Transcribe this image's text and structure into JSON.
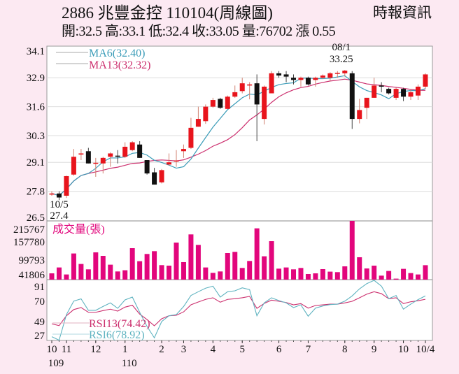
{
  "header": {
    "title": "2886  兆豐金控 110104(周線圖)",
    "ohlc_line": "開:32.5 高:33.1 低:32.4 收:33.05 量:76702 漲 0.55",
    "source": "時報資訊"
  },
  "colors": {
    "up": "#e8141c",
    "down": "#111111",
    "ma6": "#3b9cb8",
    "ma13": "#cc2f6e",
    "volume": "#e2067c",
    "rsi13": "#cc2f6e",
    "rsi6": "#5fb3c0",
    "background": "#fce9f2",
    "plot": "#ffffff"
  },
  "chart_data": [
    {
      "type": "candlestick",
      "panel": "price",
      "ylim": [
        26.5,
        34.1
      ],
      "yticks": [
        "34.1",
        "32.9",
        "31.6",
        "30.3",
        "29.1",
        "27.8",
        "26.5"
      ],
      "grid": true,
      "legend": [
        {
          "label": "MA6(32.40)",
          "series": "ma6"
        },
        {
          "label": "MA13(32.32)",
          "series": "ma13"
        }
      ],
      "ohlc": [
        [
          27.65,
          27.8,
          27.6,
          27.7
        ],
        [
          27.7,
          27.8,
          27.4,
          27.52
        ],
        [
          27.6,
          28.5,
          27.5,
          28.48
        ],
        [
          28.55,
          29.7,
          28.5,
          29.35
        ],
        [
          29.45,
          29.7,
          29.2,
          29.5
        ],
        [
          29.6,
          29.75,
          29.05,
          29.05
        ],
        [
          29.05,
          29.3,
          28.45,
          29.08
        ],
        [
          29.05,
          29.35,
          28.6,
          29.3
        ],
        [
          29.35,
          29.55,
          28.9,
          29.5
        ],
        [
          29.4,
          29.65,
          29.05,
          29.35
        ],
        [
          29.35,
          30.0,
          29.3,
          29.8
        ],
        [
          29.65,
          30.05,
          29.6,
          30.0
        ],
        [
          29.9,
          30.05,
          29.3,
          29.3
        ],
        [
          29.2,
          29.2,
          28.55,
          28.6
        ],
        [
          28.65,
          28.85,
          28.1,
          28.1
        ],
        [
          28.2,
          28.8,
          28.15,
          28.75
        ],
        [
          29.0,
          29.5,
          28.95,
          29.1
        ],
        [
          29.15,
          29.65,
          28.9,
          29.18
        ],
        [
          29.6,
          29.9,
          29.3,
          29.7
        ],
        [
          29.75,
          31.1,
          29.7,
          30.65
        ],
        [
          30.7,
          31.6,
          30.7,
          31.05
        ],
        [
          30.95,
          31.7,
          30.83,
          31.6
        ],
        [
          31.6,
          32.0,
          31.55,
          31.9
        ],
        [
          31.95,
          32.0,
          31.5,
          31.55
        ],
        [
          31.5,
          32.1,
          31.5,
          32.05
        ],
        [
          32.05,
          32.55,
          32.0,
          32.25
        ],
        [
          32.3,
          32.9,
          32.2,
          32.65
        ],
        [
          32.55,
          32.7,
          31.93,
          32.6
        ],
        [
          32.65,
          33.05,
          30.05,
          31.7
        ],
        [
          31.05,
          32.55,
          30.8,
          32.5
        ],
        [
          32.2,
          33.2,
          32.2,
          33.1
        ],
        [
          33.1,
          33.2,
          32.9,
          33.0
        ],
        [
          33.05,
          33.2,
          32.7,
          32.95
        ],
        [
          32.9,
          33.05,
          32.6,
          32.8
        ],
        [
          32.8,
          32.95,
          32.5,
          32.9
        ],
        [
          32.9,
          32.95,
          32.55,
          32.6
        ],
        [
          32.8,
          32.95,
          32.5,
          32.9
        ],
        [
          32.9,
          33.05,
          32.85,
          33.0
        ],
        [
          32.9,
          33.15,
          32.75,
          33.1
        ],
        [
          33.1,
          33.2,
          32.9,
          33.12
        ],
        [
          33.1,
          33.25,
          32.95,
          33.22
        ],
        [
          33.1,
          33.2,
          30.6,
          31.05
        ],
        [
          31.05,
          31.95,
          30.85,
          31.45
        ],
        [
          31.55,
          32.0,
          31.05,
          32.0
        ],
        [
          32.0,
          32.9,
          32.0,
          32.55
        ],
        [
          32.55,
          32.7,
          32.25,
          32.5
        ],
        [
          32.4,
          32.45,
          32.15,
          32.2
        ],
        [
          32.0,
          32.45,
          31.9,
          32.4
        ],
        [
          32.4,
          32.45,
          31.85,
          32.05
        ],
        [
          32.05,
          32.4,
          31.9,
          32.25
        ],
        [
          32.1,
          32.6,
          31.9,
          32.5
        ],
        [
          32.5,
          33.1,
          32.4,
          33.05
        ]
      ],
      "annotations": [
        {
          "week": 1,
          "date": "10/5",
          "value": "27.4",
          "position": "below"
        },
        {
          "week": 40,
          "date": "08/1",
          "value": "33.25",
          "position": "above"
        }
      ]
    },
    {
      "type": "bar",
      "panel": "volume",
      "title": "成交量(張)",
      "ylim": [
        23900,
        238800
      ],
      "yticks": [
        "215767",
        "157780",
        "99793",
        "41806"
      ],
      "values": [
        46900,
        68400,
        42800,
        119600,
        81200,
        61500,
        123700,
        110900,
        78600,
        53800,
        58200,
        139000,
        91400,
        117800,
        128000,
        76900,
        75100,
        159500,
        87900,
        189400,
        151000,
        68400,
        48700,
        53800,
        121100,
        125500,
        66600,
        92200,
        211600,
        109300,
        164600,
        64100,
        68400,
        61500,
        66600,
        44400,
        46900,
        62300,
        53100,
        51300,
        72500,
        238800,
        105800,
        64800,
        75100,
        38500,
        55600,
        27500,
        63300,
        47900,
        42800,
        76702
      ]
    },
    {
      "type": "line",
      "panel": "rsi",
      "yticks": [
        "91",
        "70",
        "49",
        "27"
      ],
      "ylim": [
        19,
        100
      ],
      "series": [
        {
          "name": "RSI13(74.42)",
          "key": "rsi13",
          "values": [
            42.3,
            40,
            52.9,
            61,
            63.6,
            57.4,
            57.4,
            59.6,
            61.5,
            59,
            64.2,
            66.6,
            55,
            48,
            39.8,
            49,
            52.9,
            53.5,
            58,
            67.2,
            70.9,
            74.3,
            76.4,
            70.6,
            74.3,
            75.2,
            76.4,
            78.2,
            62.6,
            69,
            73.3,
            71.8,
            70.2,
            67.2,
            68.8,
            62.9,
            66.3,
            67.2,
            68.1,
            68.1,
            69.7,
            71.8,
            76.4,
            81.2,
            84.3,
            81.8,
            75.2,
            76.4,
            68.8,
            71.2,
            72.5,
            74.42
          ]
        },
        {
          "name": "RSI6(78.92)",
          "key": "rsi6",
          "values": [
            25.5,
            21,
            54.4,
            72,
            75,
            60,
            60,
            65,
            69.7,
            62.6,
            73.6,
            77.3,
            57.4,
            39,
            24,
            45.3,
            52.9,
            54.4,
            65,
            79.4,
            84.3,
            88.9,
            91.6,
            77.3,
            84.3,
            85.5,
            89.4,
            87,
            52.9,
            69.7,
            76.4,
            72.7,
            69.7,
            63.6,
            67.2,
            52.3,
            62.9,
            65.7,
            67.5,
            68.1,
            72,
            78.8,
            88,
            94.9,
            99.2,
            91.6,
            75.2,
            79.4,
            61.5,
            68.1,
            74,
            78.92
          ]
        }
      ]
    }
  ],
  "xaxis": {
    "ticks": [
      {
        "week": 0,
        "label": "10"
      },
      {
        "week": 2,
        "label": "11"
      },
      {
        "week": 6,
        "label": "12"
      },
      {
        "week": 10,
        "label": "1"
      },
      {
        "week": 15,
        "label": "2"
      },
      {
        "week": 18,
        "label": "3"
      },
      {
        "week": 22,
        "label": "4"
      },
      {
        "week": 26,
        "label": "5"
      },
      {
        "week": 31,
        "label": "6"
      },
      {
        "week": 35,
        "label": "7"
      },
      {
        "week": 40,
        "label": "8"
      },
      {
        "week": 44,
        "label": "9"
      },
      {
        "week": 48,
        "label": "10"
      },
      {
        "week": 51,
        "label": "10/4"
      }
    ],
    "years": [
      {
        "week": 0,
        "label": "109"
      },
      {
        "week": 10,
        "label": "110"
      }
    ]
  }
}
